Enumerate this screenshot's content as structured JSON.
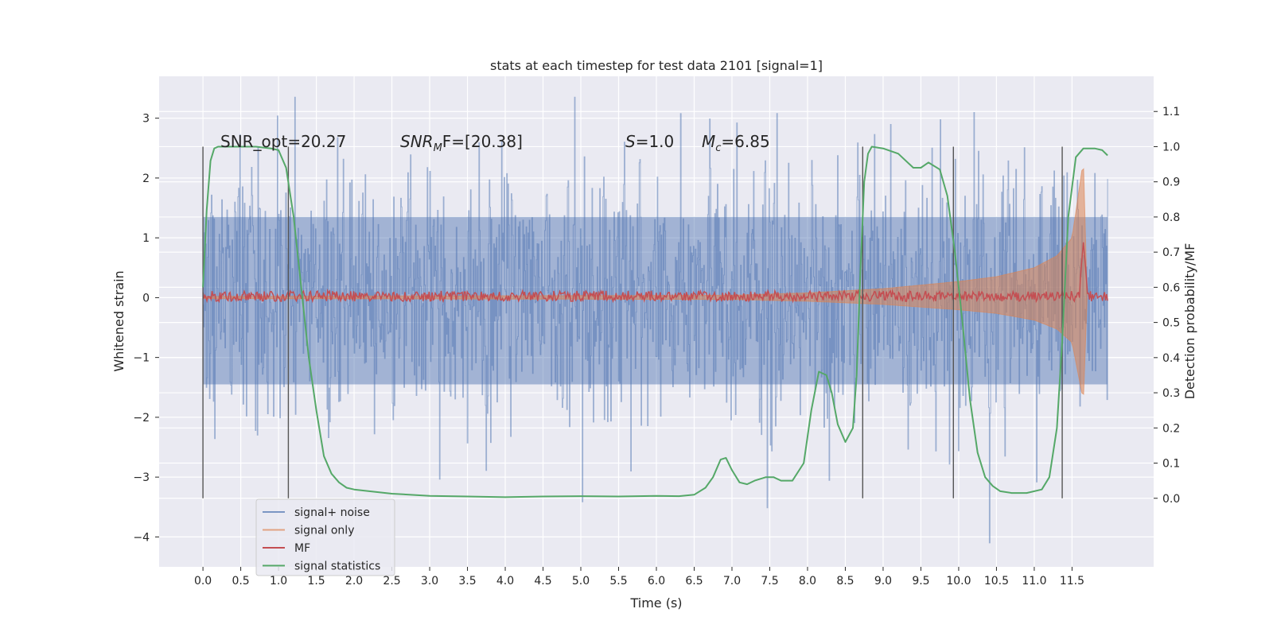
{
  "chart_data": {
    "type": "line",
    "title": "stats at each timestep for test data 2101 [signal=1]",
    "xlabel": "Time (s)",
    "ylabel": "Whitened strain",
    "y2label": "Detection probability/MF",
    "xlim": [
      -0.58,
      12.58
    ],
    "ylim": [
      -4.5,
      3.7
    ],
    "y2lim": [
      -0.195,
      1.2
    ],
    "grid": true,
    "background": "#eaeaf2",
    "x_ticks": [
      0.0,
      0.5,
      1.0,
      1.5,
      2.0,
      2.5,
      3.0,
      3.5,
      4.0,
      4.5,
      5.0,
      5.5,
      6.0,
      6.5,
      7.0,
      7.5,
      8.0,
      8.5,
      9.0,
      9.5,
      10.0,
      10.5,
      11.0,
      11.5
    ],
    "x_tick_labels": [
      "0.0",
      "0.5",
      "1.0",
      "1.5",
      "2.0",
      "2.5",
      "3.0",
      "3.5",
      "4.0",
      "4.5",
      "5.0",
      "5.5",
      "6.0",
      "6.5",
      "7.0",
      "7.5",
      "8.0",
      "8.5",
      "9.0",
      "9.5",
      "10.0",
      "10.5",
      "11.0",
      "11.5"
    ],
    "y_ticks": [
      -4,
      -3,
      -2,
      -1,
      0,
      1,
      2,
      3
    ],
    "y_tick_labels": [
      "−4",
      "−3",
      "−2",
      "−1",
      "0",
      "1",
      "2",
      "3"
    ],
    "y2_ticks": [
      0.0,
      0.1,
      0.2,
      0.3,
      0.4,
      0.5,
      0.6,
      0.7,
      0.8,
      0.9,
      1.0,
      1.1
    ],
    "y2_tick_labels": [
      "0.0",
      "0.1",
      "0.2",
      "0.3",
      "0.4",
      "0.5",
      "0.6",
      "0.7",
      "0.8",
      "0.9",
      "1.0",
      "1.1"
    ],
    "annotations": {
      "snr_opt": "SNR_opt=20.27",
      "snr_mf_symbol": "SNR",
      "snr_mf_sub": "M",
      "snr_mf_rest": "F=[20.38]",
      "s_symbol": "S",
      "s_rest": "=1.0",
      "mc_symbol": "M",
      "mc_sub": "c",
      "mc_rest": "=6.85"
    },
    "vertical_lines_x": [
      0.0,
      1.13,
      8.73,
      9.93,
      11.37
    ],
    "series": [
      {
        "name": "signal+ noise",
        "color": "#4c72b0",
        "style": "noise-band",
        "x_range": [
          0.0,
          11.97
        ],
        "envelope": {
          "q_upper": 1.35,
          "q_lower": -1.45,
          "max": 3.35,
          "min": -4.1
        }
      },
      {
        "name": "signal only",
        "color": "#dd8452",
        "style": "chirp",
        "x_range": [
          0.0,
          11.7
        ],
        "envelope_points": [
          [
            0.0,
            0.02
          ],
          [
            7.0,
            0.04
          ],
          [
            8.0,
            0.08
          ],
          [
            9.0,
            0.15
          ],
          [
            10.0,
            0.27
          ],
          [
            10.5,
            0.35
          ],
          [
            11.0,
            0.5
          ],
          [
            11.3,
            0.7
          ],
          [
            11.5,
            1.0
          ],
          [
            11.65,
            2.3
          ],
          [
            11.7,
            0.0
          ]
        ]
      },
      {
        "name": "MF",
        "color": "#c44e52",
        "style": "trace",
        "axis": "y2",
        "x_range": [
          0.0,
          11.97
        ],
        "mean": 0.575,
        "peak": {
          "x": 11.65,
          "y": 0.73
        }
      },
      {
        "name": "signal statistics",
        "color": "#55a868",
        "axis": "y2",
        "x": [
          0.0,
          0.05,
          0.1,
          0.15,
          0.2,
          0.3,
          0.5,
          0.7,
          0.9,
          1.0,
          1.1,
          1.2,
          1.3,
          1.4,
          1.5,
          1.6,
          1.7,
          1.8,
          1.9,
          2.0,
          2.2,
          2.5,
          3.0,
          3.5,
          4.0,
          4.5,
          5.0,
          5.5,
          6.0,
          6.3,
          6.5,
          6.65,
          6.75,
          6.85,
          6.92,
          7.0,
          7.1,
          7.2,
          7.3,
          7.45,
          7.55,
          7.65,
          7.8,
          7.95,
          8.05,
          8.15,
          8.25,
          8.32,
          8.4,
          8.5,
          8.6,
          8.65,
          8.7,
          8.75,
          8.8,
          8.85,
          9.0,
          9.2,
          9.4,
          9.5,
          9.6,
          9.75,
          9.85,
          9.95,
          10.05,
          10.15,
          10.25,
          10.35,
          10.45,
          10.55,
          10.7,
          10.9,
          11.1,
          11.2,
          11.3,
          11.37,
          11.45,
          11.55,
          11.65,
          11.8,
          11.9,
          11.97
        ],
        "y": [
          0.6,
          0.82,
          0.96,
          0.995,
          1.0,
          1.0,
          1.0,
          1.0,
          0.995,
          0.99,
          0.94,
          0.8,
          0.6,
          0.4,
          0.25,
          0.12,
          0.07,
          0.045,
          0.03,
          0.025,
          0.02,
          0.013,
          0.007,
          0.005,
          0.003,
          0.005,
          0.006,
          0.005,
          0.007,
          0.006,
          0.01,
          0.03,
          0.06,
          0.11,
          0.115,
          0.08,
          0.045,
          0.04,
          0.05,
          0.06,
          0.06,
          0.05,
          0.05,
          0.1,
          0.25,
          0.36,
          0.35,
          0.3,
          0.21,
          0.16,
          0.2,
          0.35,
          0.65,
          0.9,
          0.98,
          1.0,
          0.995,
          0.98,
          0.94,
          0.94,
          0.955,
          0.935,
          0.86,
          0.7,
          0.5,
          0.28,
          0.13,
          0.06,
          0.035,
          0.02,
          0.015,
          0.015,
          0.025,
          0.06,
          0.2,
          0.45,
          0.8,
          0.97,
          0.995,
          0.995,
          0.99,
          0.975
        ]
      }
    ],
    "legend": {
      "placement": "lower-left",
      "entries": [
        "signal+ noise",
        "signal only",
        "MF",
        "signal statistics"
      ]
    }
  }
}
